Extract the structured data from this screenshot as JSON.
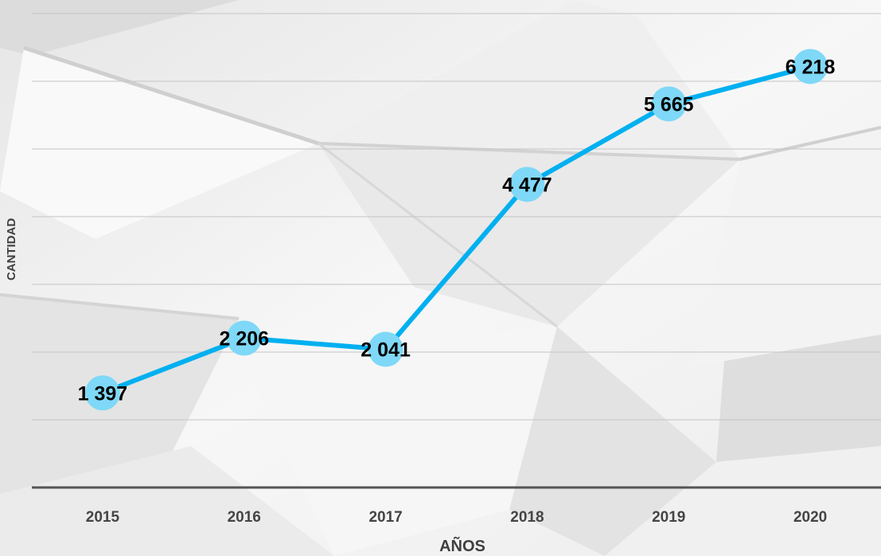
{
  "chart_data": {
    "type": "line",
    "categories": [
      "2015",
      "2016",
      "2017",
      "2018",
      "2019",
      "2020"
    ],
    "series": [
      {
        "values": [
          1397,
          2206,
          2041,
          4477,
          5665,
          6218
        ]
      }
    ],
    "value_labels": [
      "1 397",
      "2 206",
      "2 041",
      "4 477",
      "5 665",
      "6 218"
    ],
    "title": "",
    "xlabel": "AÑOS",
    "ylabel": "CANTIDAD",
    "ylim": [
      0,
      7000
    ],
    "grid": true,
    "legend": "none",
    "colors": {
      "line": "#00b0f0",
      "marker": "#7fd8f7",
      "grid": "#c4c4c4",
      "axis": "#555555",
      "tick_text": "#444444",
      "label_text": "#000000",
      "background": "#f2f2f2"
    }
  }
}
